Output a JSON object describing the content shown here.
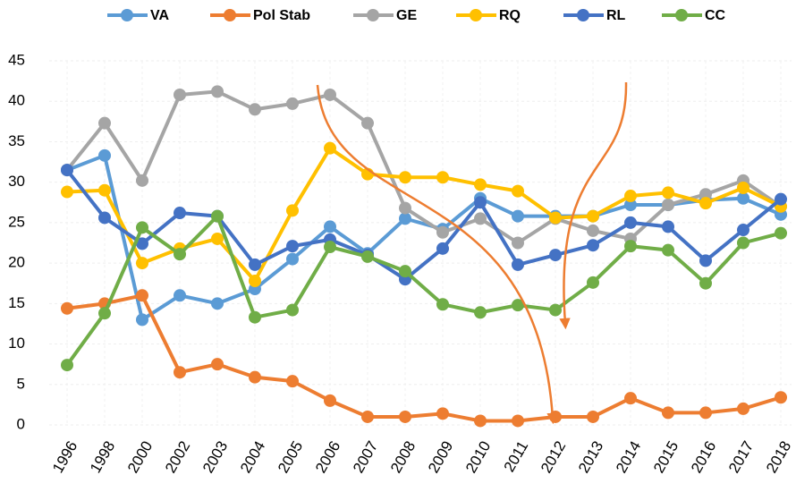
{
  "chart_data": {
    "type": "line",
    "categories": [
      "1996",
      "1998",
      "2000",
      "2002",
      "2003",
      "2004",
      "2005",
      "2006",
      "2007",
      "2008",
      "2009",
      "2010",
      "2011",
      "2012",
      "2013",
      "2014",
      "2015",
      "2016",
      "2017",
      "2018"
    ],
    "series": [
      {
        "name": "VA",
        "color": "#5b9bd5",
        "values": [
          31.5,
          33.3,
          13,
          16,
          15,
          16.8,
          20.5,
          24.5,
          21.2,
          25.5,
          24.2,
          28,
          25.8,
          25.8,
          25.8,
          27.2,
          27.2,
          27.8,
          28,
          26
        ]
      },
      {
        "name": "Pol Stab",
        "color": "#ed7d31",
        "values": [
          14.4,
          15,
          16,
          6.5,
          7.5,
          5.9,
          5.4,
          3,
          1,
          1,
          1.4,
          0.5,
          0.5,
          1,
          1,
          3.3,
          1.5,
          1.5,
          2,
          3.4
        ]
      },
      {
        "name": "GE",
        "color": "#a5a5a5",
        "values": [
          31.5,
          37.3,
          30.2,
          40.8,
          41.2,
          39,
          39.7,
          40.8,
          37.3,
          26.8,
          23.8,
          25.5,
          22.5,
          25.5,
          24,
          23,
          27.2,
          28.5,
          30.2,
          27
        ]
      },
      {
        "name": "RQ",
        "color": "#ffc000",
        "values": [
          28.8,
          29,
          20,
          21.8,
          23,
          17.8,
          26.5,
          34.2,
          31,
          30.6,
          30.6,
          29.7,
          28.9,
          25.6,
          25.8,
          28.3,
          28.7,
          27.4,
          29.3,
          27
        ]
      },
      {
        "name": "RL",
        "color": "#4472c4",
        "values": [
          31.5,
          25.6,
          22.4,
          26.2,
          25.8,
          19.8,
          22.1,
          22.9,
          21,
          18,
          21.8,
          27.5,
          19.8,
          21,
          22.2,
          25,
          24.5,
          20.3,
          24.1,
          27.9
        ]
      },
      {
        "name": "CC",
        "color": "#70ad47",
        "values": [
          7.4,
          13.8,
          24.4,
          21.1,
          25.8,
          13.3,
          14.2,
          22,
          20.8,
          19,
          14.9,
          13.9,
          14.8,
          14.2,
          17.6,
          22.1,
          21.6,
          17.5,
          22.5,
          23.7
        ]
      }
    ],
    "ylim": [
      0,
      45
    ],
    "yticks": [
      0,
      5,
      10,
      15,
      20,
      25,
      30,
      35,
      40,
      45
    ],
    "grid": true,
    "legend": "top"
  }
}
